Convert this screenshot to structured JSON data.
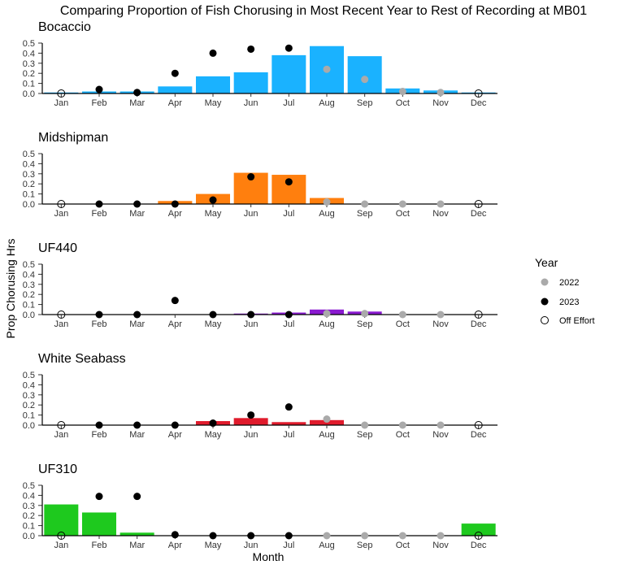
{
  "chart_data": {
    "type": "bar",
    "title": "Comparing Proportion of Fish Chorusing in Most Recent Year to Rest of Recording at MB01",
    "xlabel": "Month",
    "ylabel": "Prop Chorusing Hrs",
    "categories": [
      "Jan",
      "Feb",
      "Mar",
      "Apr",
      "May",
      "Jun",
      "Jul",
      "Aug",
      "Sep",
      "Oct",
      "Nov",
      "Dec"
    ],
    "ylim": [
      0,
      0.5
    ],
    "yticks": [
      "0.0",
      "0.1",
      "0.2",
      "0.3",
      "0.4",
      "0.5"
    ],
    "legend": {
      "title": "Year",
      "position": "right",
      "entries": [
        {
          "label": "2022",
          "color": "#aaaaaa",
          "style": "filled"
        },
        {
          "label": "2023",
          "color": "#000000",
          "style": "filled"
        },
        {
          "label": "Off Effort",
          "color": "#000000",
          "style": "hollow"
        }
      ]
    },
    "panels": [
      {
        "name": "Bocaccio",
        "color": "#1ab2ff",
        "bars": [
          0.01,
          0.02,
          0.02,
          0.07,
          0.17,
          0.21,
          0.38,
          0.47,
          0.37,
          0.05,
          0.03,
          0.01
        ],
        "points": [
          {
            "month": "Jan",
            "value": 0.0,
            "type": "Off Effort"
          },
          {
            "month": "Feb",
            "value": 0.04,
            "type": "2023"
          },
          {
            "month": "Mar",
            "value": 0.01,
            "type": "2023"
          },
          {
            "month": "Apr",
            "value": 0.2,
            "type": "2023"
          },
          {
            "month": "May",
            "value": 0.4,
            "type": "2023"
          },
          {
            "month": "Jun",
            "value": 0.44,
            "type": "2023"
          },
          {
            "month": "Jul",
            "value": 0.45,
            "type": "2023"
          },
          {
            "month": "Aug",
            "value": 0.24,
            "type": "2022"
          },
          {
            "month": "Sep",
            "value": 0.14,
            "type": "2022"
          },
          {
            "month": "Oct",
            "value": 0.02,
            "type": "2022"
          },
          {
            "month": "Nov",
            "value": 0.01,
            "type": "2022"
          },
          {
            "month": "Dec",
            "value": 0.0,
            "type": "Off Effort"
          }
        ]
      },
      {
        "name": "Midshipman",
        "color": "#ff7f0e",
        "bars": [
          0,
          0,
          0,
          0.03,
          0.1,
          0.31,
          0.29,
          0.06,
          0,
          0,
          0,
          0
        ],
        "points": [
          {
            "month": "Jan",
            "value": 0.0,
            "type": "Off Effort"
          },
          {
            "month": "Feb",
            "value": 0.0,
            "type": "2023"
          },
          {
            "month": "Mar",
            "value": 0.0,
            "type": "2023"
          },
          {
            "month": "Apr",
            "value": 0.0,
            "type": "2023"
          },
          {
            "month": "May",
            "value": 0.04,
            "type": "2023"
          },
          {
            "month": "Jun",
            "value": 0.27,
            "type": "2023"
          },
          {
            "month": "Jul",
            "value": 0.22,
            "type": "2023"
          },
          {
            "month": "Aug",
            "value": 0.02,
            "type": "2022"
          },
          {
            "month": "Sep",
            "value": 0.0,
            "type": "2022"
          },
          {
            "month": "Oct",
            "value": 0.0,
            "type": "2022"
          },
          {
            "month": "Nov",
            "value": 0.0,
            "type": "2022"
          },
          {
            "month": "Dec",
            "value": 0.0,
            "type": "Off Effort"
          }
        ]
      },
      {
        "name": "UF440",
        "color": "#8a1ad0",
        "bars": [
          0,
          0,
          0,
          0,
          0,
          0.01,
          0.02,
          0.05,
          0.03,
          0,
          0,
          0
        ],
        "points": [
          {
            "month": "Jan",
            "value": 0.0,
            "type": "Off Effort"
          },
          {
            "month": "Feb",
            "value": 0.0,
            "type": "2023"
          },
          {
            "month": "Mar",
            "value": 0.0,
            "type": "2023"
          },
          {
            "month": "Apr",
            "value": 0.14,
            "type": "2023"
          },
          {
            "month": "May",
            "value": 0.0,
            "type": "2023"
          },
          {
            "month": "Jun",
            "value": 0.0,
            "type": "2023"
          },
          {
            "month": "Jul",
            "value": 0.0,
            "type": "2023"
          },
          {
            "month": "Aug",
            "value": 0.01,
            "type": "2022"
          },
          {
            "month": "Sep",
            "value": 0.01,
            "type": "2022"
          },
          {
            "month": "Oct",
            "value": 0.0,
            "type": "2022"
          },
          {
            "month": "Nov",
            "value": 0.0,
            "type": "2022"
          },
          {
            "month": "Dec",
            "value": 0.0,
            "type": "Off Effort"
          }
        ]
      },
      {
        "name": "White Seabass",
        "color": "#e01b2c",
        "bars": [
          0,
          0,
          0,
          0,
          0.04,
          0.07,
          0.03,
          0.05,
          0,
          0,
          0,
          0
        ],
        "points": [
          {
            "month": "Jan",
            "value": 0.0,
            "type": "Off Effort"
          },
          {
            "month": "Feb",
            "value": 0.0,
            "type": "2023"
          },
          {
            "month": "Mar",
            "value": 0.0,
            "type": "2023"
          },
          {
            "month": "Apr",
            "value": 0.0,
            "type": "2023"
          },
          {
            "month": "May",
            "value": 0.02,
            "type": "2023"
          },
          {
            "month": "Jun",
            "value": 0.1,
            "type": "2023"
          },
          {
            "month": "Jul",
            "value": 0.18,
            "type": "2023"
          },
          {
            "month": "Aug",
            "value": 0.06,
            "type": "2022"
          },
          {
            "month": "Sep",
            "value": 0.0,
            "type": "2022"
          },
          {
            "month": "Oct",
            "value": 0.0,
            "type": "2022"
          },
          {
            "month": "Nov",
            "value": 0.0,
            "type": "2022"
          },
          {
            "month": "Dec",
            "value": 0.0,
            "type": "Off Effort"
          }
        ]
      },
      {
        "name": "UF310",
        "color": "#1ec91e",
        "bars": [
          0.31,
          0.23,
          0.03,
          0,
          0,
          0,
          0,
          0,
          0,
          0,
          0,
          0.12
        ],
        "points": [
          {
            "month": "Jan",
            "value": 0.0,
            "type": "Off Effort"
          },
          {
            "month": "Feb",
            "value": 0.39,
            "type": "2023"
          },
          {
            "month": "Mar",
            "value": 0.39,
            "type": "2023"
          },
          {
            "month": "Apr",
            "value": 0.01,
            "type": "2023"
          },
          {
            "month": "May",
            "value": 0.0,
            "type": "2023"
          },
          {
            "month": "Jun",
            "value": 0.0,
            "type": "2023"
          },
          {
            "month": "Jul",
            "value": 0.0,
            "type": "2023"
          },
          {
            "month": "Aug",
            "value": 0.0,
            "type": "2022"
          },
          {
            "month": "Sep",
            "value": 0.0,
            "type": "2022"
          },
          {
            "month": "Oct",
            "value": 0.0,
            "type": "2022"
          },
          {
            "month": "Nov",
            "value": 0.0,
            "type": "2022"
          },
          {
            "month": "Dec",
            "value": 0.0,
            "type": "Off Effort"
          }
        ]
      }
    ]
  }
}
